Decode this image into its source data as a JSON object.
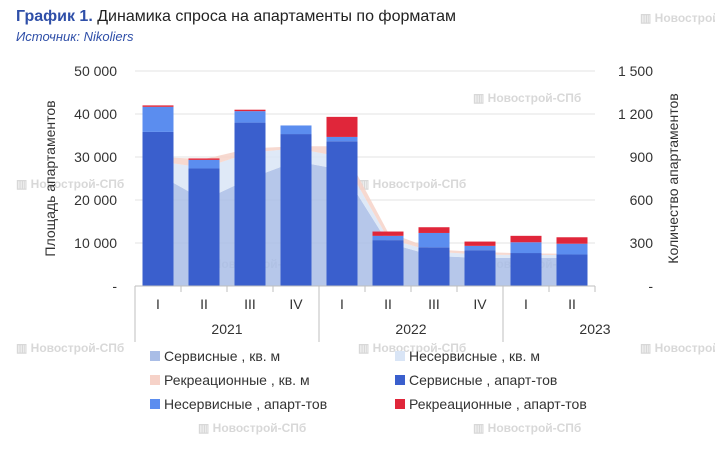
{
  "header": {
    "title_prefix": "График 1.",
    "title": "Динамика спроса на апартаменты по форматам",
    "source": "Источник: Nikoliers"
  },
  "watermark": "Новострой-СПб",
  "colors": {
    "service_sqm": "#a9bde6",
    "nonservice_sqm": "#d9e5f6",
    "recreational_sqm": "#f6d2c8",
    "service_units": "#3a5fcd",
    "nonservice_units": "#5b8def",
    "recreational_units": "#e0263a"
  },
  "chart_data": {
    "type": "bar",
    "categories": [
      "I",
      "II",
      "III",
      "IV",
      "I",
      "II",
      "III",
      "IV",
      "I",
      "II"
    ],
    "year_groups": [
      {
        "label": "2021",
        "from": 0,
        "to": 3
      },
      {
        "label": "2022",
        "from": 4,
        "to": 7
      },
      {
        "label": "2023",
        "from": 8,
        "to": 9
      }
    ],
    "ylabel": "Площадь апартаментов",
    "y2label": "Количество апартаментов",
    "ylim": [
      0,
      50000
    ],
    "y2lim": [
      0,
      1500
    ],
    "yticks": [
      "-",
      "10 000",
      "20 000",
      "30 000",
      "40 000",
      "50 000"
    ],
    "y2ticks": [
      "-",
      "300",
      "600",
      "900",
      "1 200",
      "1 500"
    ],
    "area_series": [
      {
        "name": "Сервисные , кв. м",
        "values": [
          26000,
          20000,
          25000,
          29000,
          27000,
          10000,
          7000,
          6500,
          6500,
          6500
        ]
      },
      {
        "name": "Несервисные , кв. м",
        "values": [
          3000,
          7500,
          6000,
          3000,
          3000,
          1000,
          1000,
          800,
          700,
          700
        ]
      },
      {
        "name": "Рекреационные , кв. м",
        "values": [
          1000,
          2000,
          1000,
          500,
          2500,
          1500,
          500,
          600,
          400,
          300
        ]
      }
    ],
    "bar_series": [
      {
        "name": "Сервисные , апарт-тов",
        "values": [
          1075,
          820,
          1140,
          1060,
          1010,
          320,
          270,
          250,
          230,
          220
        ]
      },
      {
        "name": "Несервисные , апарт-тов",
        "values": [
          175,
          60,
          80,
          60,
          30,
          30,
          100,
          30,
          75,
          75
        ]
      },
      {
        "name": "Рекреационные , апарт-тов",
        "values": [
          10,
          10,
          10,
          0,
          140,
          30,
          40,
          30,
          45,
          45
        ]
      }
    ],
    "legend_position": "bottom"
  }
}
